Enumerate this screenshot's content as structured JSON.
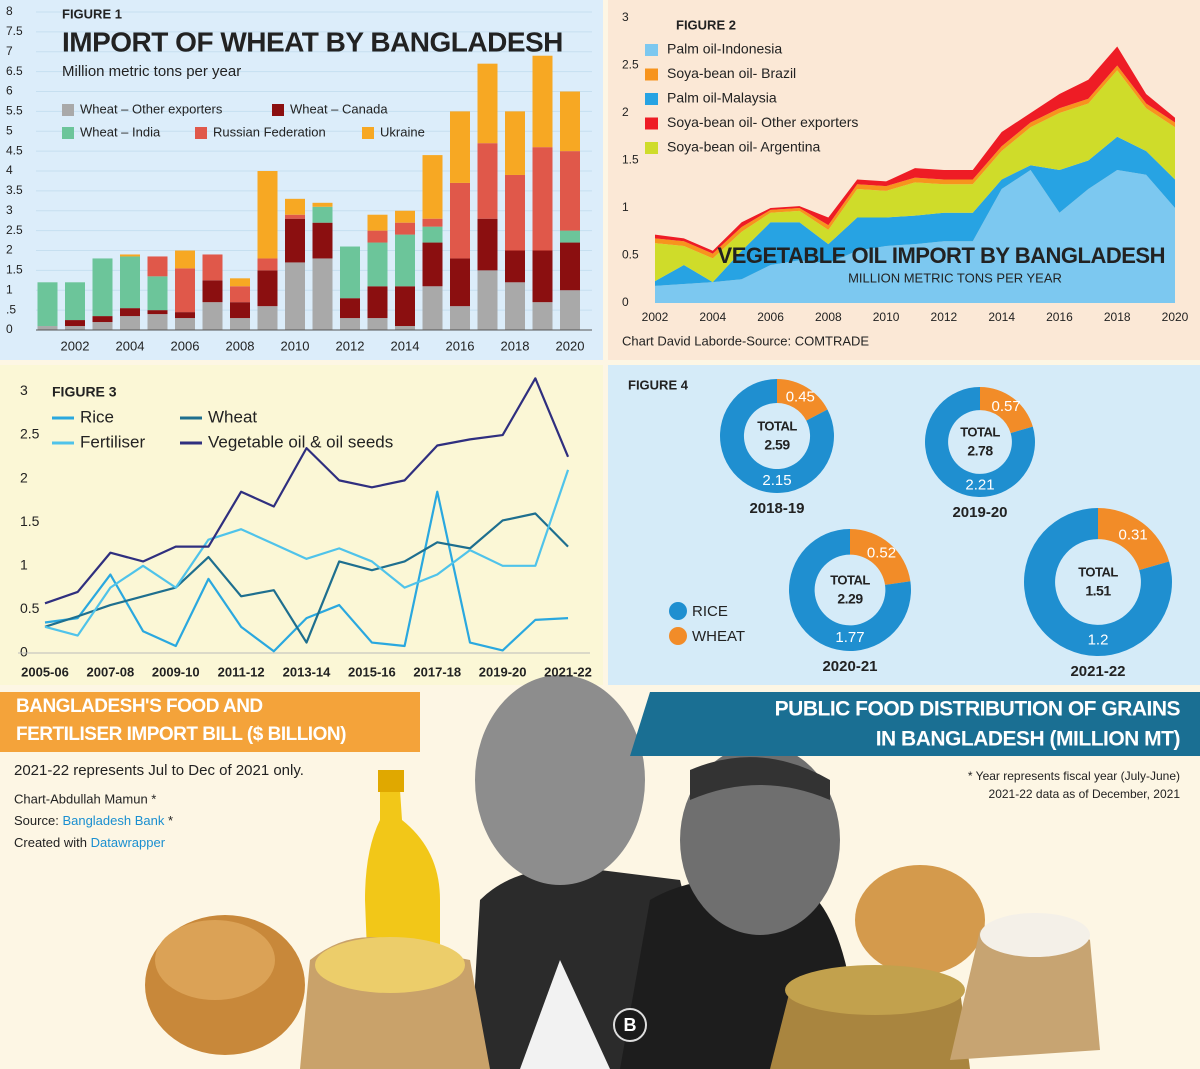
{
  "chart_data": [
    {
      "type": "stacked_bar",
      "label": "FIGURE 1",
      "title": "IMPORT OF WHEAT BY BANGLADESH",
      "subtitle": "Million metric tons per year",
      "categories": [
        null,
        "2002",
        null,
        "2004",
        null,
        "2006",
        null,
        "2008",
        null,
        "2010",
        null,
        "2012",
        null,
        "2014",
        null,
        "2016",
        null,
        "2018",
        null,
        "2020"
      ],
      "series": [
        {
          "name": "Wheat – Other exporters",
          "color": "#a9a9a9",
          "values": [
            0.1,
            0.1,
            0.2,
            0.35,
            0.4,
            0.3,
            0.7,
            0.3,
            0.6,
            1.7,
            1.8,
            0.3,
            0.3,
            0.1,
            1.1,
            0.6,
            1.5,
            1.2,
            0.7,
            1.0
          ]
        },
        {
          "name": "Wheat – Canada",
          "color": "#8b0f10",
          "values": [
            0,
            0.15,
            0.15,
            0.2,
            0.1,
            0.15,
            0.55,
            0.4,
            0.9,
            1.1,
            0.9,
            0.5,
            0.8,
            1.0,
            1.1,
            1.2,
            1.3,
            0.8,
            1.3,
            1.2
          ]
        },
        {
          "name": "Wheat – India",
          "color": "#6cc59a",
          "values": [
            1.1,
            0.95,
            1.45,
            1.3,
            0.85,
            0,
            0,
            0,
            0,
            0,
            0.4,
            1.3,
            1.1,
            1.3,
            0.4,
            0,
            0,
            0,
            0,
            0.3
          ]
        },
        {
          "name": "Russian Federation",
          "color": "#e0584a",
          "values": [
            0,
            0,
            0,
            0,
            0.5,
            1.1,
            0.65,
            0.4,
            0.3,
            0.1,
            0,
            0,
            0.3,
            0.3,
            0.2,
            1.9,
            1.9,
            1.9,
            2.6,
            2.0
          ]
        },
        {
          "name": "Ukraine",
          "color": "#f7a823",
          "values": [
            0,
            0,
            0,
            0.05,
            0,
            0.45,
            0,
            0.2,
            2.2,
            0.4,
            0.1,
            0,
            0.4,
            0.3,
            1.6,
            1.8,
            2.0,
            1.6,
            2.3,
            1.5
          ]
        }
      ],
      "ylim": [
        0,
        8
      ],
      "yticks": [
        0,
        {
          "value": 0.5,
          "label": ".5"
        },
        1,
        1.5,
        2,
        2.5,
        3,
        3.5,
        4,
        4.5,
        5,
        5.5,
        6,
        6.5,
        7,
        7.5,
        8
      ],
      "grid": true
    },
    {
      "type": "stacked_area",
      "label": "FIGURE 2",
      "title": "VEGETABLE OIL IMPORT BY BANGLADESH",
      "subtitle": "MILLION METRIC TONS PER YEAR",
      "source": "Chart David Laborde-Source: COMTRADE",
      "x": [
        2002,
        2003,
        2004,
        2005,
        2006,
        2007,
        2008,
        2009,
        2010,
        2011,
        2012,
        2013,
        2014,
        2015,
        2016,
        2017,
        2018,
        2019,
        2020
      ],
      "xlim": [
        2002,
        2020
      ],
      "xticks": [
        2002,
        2004,
        2006,
        2008,
        2010,
        2012,
        2014,
        2016,
        2018,
        2020
      ],
      "series": [
        {
          "name": "Palm oil-Indonesia",
          "color": "#7cc8f0",
          "values": [
            0.18,
            0.2,
            0.22,
            0.25,
            0.4,
            0.45,
            0.42,
            0.55,
            0.6,
            0.62,
            0.65,
            0.65,
            1.2,
            1.4,
            0.95,
            1.2,
            1.4,
            1.35,
            1.0
          ]
        },
        {
          "name": "Palm oil-Malaysia",
          "color": "#27a3e3",
          "values": [
            0.05,
            0.2,
            0,
            0.3,
            0.45,
            0.4,
            0.2,
            0.35,
            0.3,
            0.3,
            0.3,
            0.3,
            0.1,
            0.05,
            0.45,
            0.3,
            0.35,
            0.25,
            0.3
          ]
        },
        {
          "name": "Soya-bean oil- Argentina",
          "color": "#cfdc2a",
          "values": [
            0.4,
            0.2,
            0.25,
            0.2,
            0.1,
            0.12,
            0.15,
            0.3,
            0.28,
            0.35,
            0.3,
            0.3,
            0.3,
            0.4,
            0.6,
            0.6,
            0.7,
            0.45,
            0.55
          ]
        },
        {
          "name": "Soya-bean oil- Brazil",
          "color": "#f7941d",
          "values": [
            0.05,
            0.05,
            0.05,
            0.05,
            0.03,
            0.03,
            0.05,
            0.05,
            0.05,
            0.05,
            0.05,
            0.05,
            0.05,
            0.05,
            0.05,
            0.05,
            0.05,
            0.05,
            0.05
          ]
        },
        {
          "name": "Soya-bean oil- Other exporters",
          "color": "#ee1c25",
          "values": [
            0.04,
            0.03,
            0.03,
            0.05,
            0.02,
            0.02,
            0.08,
            0.05,
            0.05,
            0.1,
            0.1,
            0.1,
            0.15,
            0.1,
            0.15,
            0.2,
            0.2,
            0.1,
            0.05
          ]
        }
      ],
      "ylim": [
        0,
        3
      ],
      "yticks": [
        0,
        0.5,
        1,
        1.5,
        2,
        2.5,
        3
      ]
    },
    {
      "type": "line",
      "label": "FIGURE 3",
      "title": [
        "BANGLADESH'S FOOD AND",
        "FERTILISER IMPORT BILL ($ BILLION)"
      ],
      "note": "2021-22 represents Jul to Dec of 2021 only.",
      "categories": [
        "2005-06",
        null,
        "2007-08",
        null,
        "2009-10",
        null,
        "2011-12",
        null,
        "2013-14",
        null,
        "2015-16",
        null,
        "2017-18",
        null,
        "2019-20",
        null,
        "2021-22"
      ],
      "series": [
        {
          "name": "Rice",
          "color": "#2aa8df",
          "values": [
            0.35,
            0.4,
            0.9,
            0.25,
            0.08,
            0.85,
            0.3,
            0.02,
            0.4,
            0.55,
            0.12,
            0.08,
            1.85,
            0.12,
            0.03,
            0.38,
            0.4
          ]
        },
        {
          "name": "Wheat",
          "color": "#1e6f8f",
          "values": [
            0.3,
            0.42,
            0.55,
            0.65,
            0.75,
            1.1,
            0.65,
            0.72,
            0.12,
            1.05,
            0.95,
            1.05,
            1.27,
            1.2,
            1.52,
            1.6,
            1.22
          ]
        },
        {
          "name": "Fertiliser",
          "color": "#4fc3ea",
          "values": [
            0.3,
            0.2,
            0.75,
            1.0,
            0.75,
            1.3,
            1.42,
            1.25,
            1.08,
            1.2,
            1.05,
            0.75,
            0.9,
            1.18,
            1.0,
            1.0,
            2.1
          ]
        },
        {
          "name": "Vegetable oil & oil seeds",
          "color": "#2f2f7f",
          "values": [
            0.57,
            0.7,
            1.15,
            1.05,
            1.22,
            1.22,
            1.85,
            1.68,
            2.35,
            1.98,
            1.9,
            1.98,
            2.38,
            2.45,
            2.5,
            3.15,
            2.25
          ]
        }
      ],
      "ylim": [
        0,
        3.2
      ],
      "yticks": [
        0,
        0.5,
        1,
        1.5,
        2,
        2.5,
        3
      ]
    },
    {
      "type": "donut",
      "label": "FIGURE 4",
      "title": [
        "PUBLIC FOOD DISTRIBUTION OF GRAINS",
        "IN BANGLADESH (MILLION MT)"
      ],
      "notes": [
        "* Year represents fiscal year (July-June)",
        "2021-22 data as of December, 2021"
      ],
      "total_label": "TOTAL",
      "categories": [
        "2018-19",
        "2019-20",
        "2020-21",
        "2021-22"
      ],
      "totals": [
        2.59,
        2.78,
        2.29,
        1.51
      ],
      "series": [
        {
          "name": "RICE",
          "color": "#1f8fd0",
          "values": [
            2.15,
            2.21,
            1.77,
            1.2
          ]
        },
        {
          "name": "WHEAT",
          "color": "#f28c28",
          "values": [
            0.45,
            0.57,
            0.52,
            0.31
          ]
        }
      ]
    }
  ],
  "credits": {
    "author": "Chart-Abdullah Mamun *",
    "source_prefix": "Source:",
    "source_name": "Bangladesh Bank",
    "source_mark": "*",
    "created_prefix": "Created with",
    "created_name": "Datawrapper",
    "logo": "B"
  }
}
